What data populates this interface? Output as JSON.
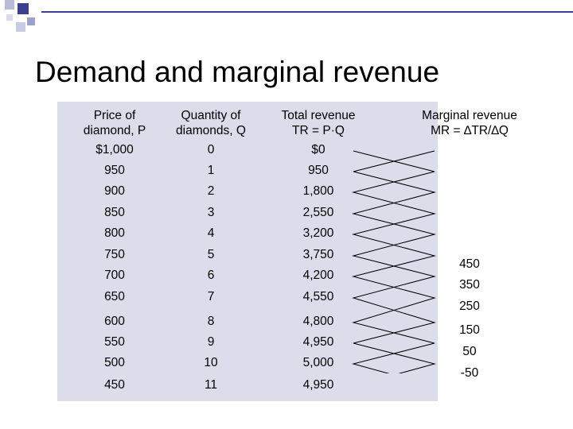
{
  "title": "Demand and marginal revenue",
  "headers": {
    "price": [
      "Price of",
      "diamond, P"
    ],
    "quantity": [
      "Quantity of",
      "diamonds, Q"
    ],
    "total_revenue": [
      "Total revenue",
      "TR = P·Q"
    ],
    "marginal_revenue": [
      "Marginal revenue",
      "MR = ∆TR/∆Q"
    ]
  },
  "rows": [
    {
      "price": "$1,000",
      "quantity": "0",
      "tr": "$0"
    },
    {
      "price": "950",
      "quantity": "1",
      "tr": "950"
    },
    {
      "price": "900",
      "quantity": "2",
      "tr": "1,800"
    },
    {
      "price": "850",
      "quantity": "3",
      "tr": "2,550"
    },
    {
      "price": "800",
      "quantity": "4",
      "tr": "3,200"
    },
    {
      "price": "750",
      "quantity": "5",
      "tr": "3,750"
    },
    {
      "price": "700",
      "quantity": "6",
      "tr": "4,200"
    },
    {
      "price": "650",
      "quantity": "7",
      "tr": "4,550"
    },
    {
      "price": "600",
      "quantity": "8",
      "tr": "4,800"
    },
    {
      "price": "550",
      "quantity": "9",
      "tr": "4,950"
    },
    {
      "price": "500",
      "quantity": "10",
      "tr": "5,000"
    },
    {
      "price": "450",
      "quantity": "11",
      "tr": "4,950"
    }
  ],
  "marginal_revenue": [
    "450",
    "350",
    "250",
    "150",
    "50",
    "-50"
  ],
  "colors": {
    "panel": "#dcdcea",
    "accent": "#3a3f8f"
  }
}
